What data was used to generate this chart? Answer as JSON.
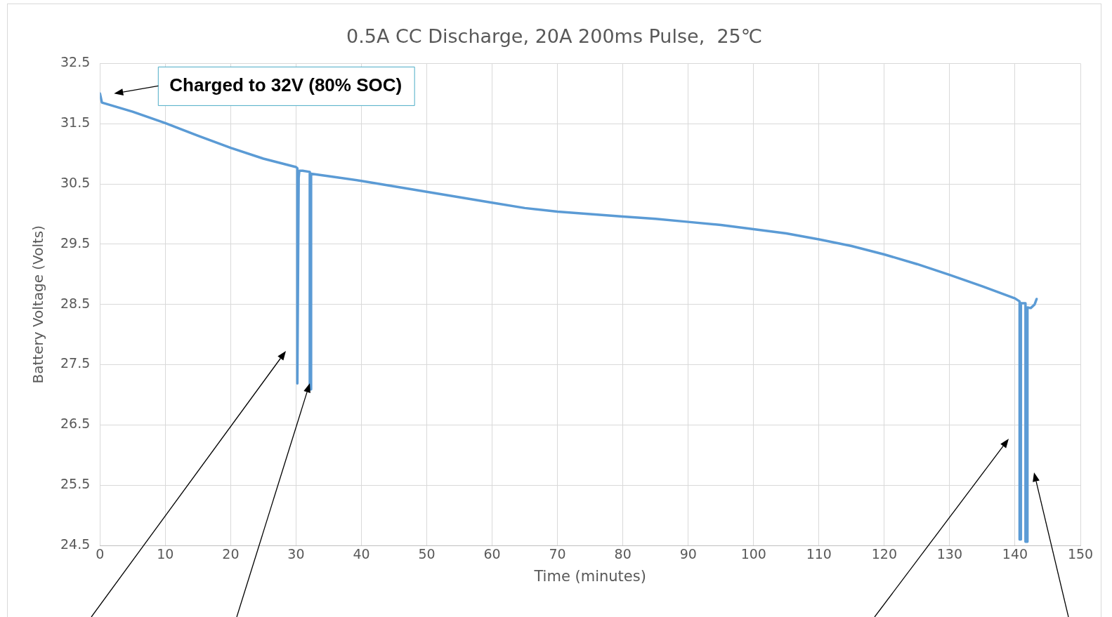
{
  "chart_data": {
    "type": "line",
    "title": "0.5A CC Discharge, 20A 200ms Pulse,  25℃",
    "xlabel": "Time (minutes)",
    "ylabel": "Battery Voltage (Volts)",
    "series": [
      {
        "color": "#5b9bd5",
        "x": [
          0,
          0.3,
          5,
          10,
          15,
          20,
          25,
          30,
          30.2,
          30.2,
          30.4,
          30.5,
          31,
          32.1,
          32.1,
          32.3,
          32.3,
          35,
          40,
          45,
          50,
          55,
          60,
          65,
          70,
          75,
          80,
          85,
          90,
          95,
          100,
          105,
          110,
          115,
          120,
          125,
          130,
          135,
          140,
          140.7,
          140.7,
          140.9,
          140.9,
          141.6,
          141.6,
          141.9,
          141.9,
          142.4,
          143,
          143.3
        ],
        "values": [
          32.0,
          31.85,
          31.7,
          31.51,
          31.3,
          31.1,
          30.92,
          30.78,
          30.76,
          27.19,
          30.6,
          30.72,
          30.72,
          30.7,
          27.09,
          27.09,
          30.67,
          30.63,
          30.55,
          30.46,
          30.37,
          30.28,
          30.19,
          30.1,
          30.04,
          30.0,
          29.96,
          29.92,
          29.87,
          29.82,
          29.75,
          29.68,
          29.58,
          29.47,
          29.33,
          29.17,
          28.99,
          28.8,
          28.6,
          28.55,
          24.6,
          24.6,
          28.52,
          28.52,
          24.56,
          24.56,
          28.45,
          28.44,
          28.5,
          28.59
        ]
      }
    ],
    "xlim": [
      0,
      150
    ],
    "xticks": [
      0,
      10,
      20,
      30,
      40,
      50,
      60,
      70,
      80,
      90,
      100,
      110,
      120,
      130,
      140,
      150
    ],
    "ylim": [
      24.5,
      32.5
    ],
    "yticks": [
      24.5,
      25.5,
      26.5,
      27.5,
      28.5,
      29.5,
      30.5,
      31.5,
      32.5
    ],
    "grid": true,
    "legend": false,
    "marker": "none",
    "line_style": "solid",
    "annotations": [
      "Charged to 32V (80% SOC)"
    ]
  }
}
